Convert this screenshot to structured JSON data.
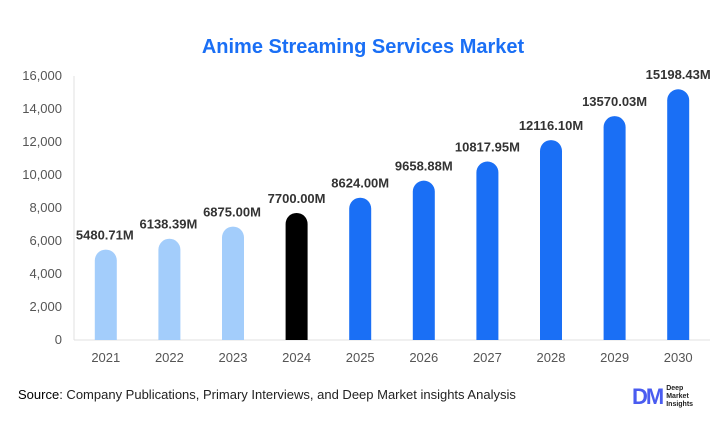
{
  "chart_data": {
    "type": "bar",
    "title": "Anime Streaming Services Market",
    "categories": [
      "2021",
      "2022",
      "2023",
      "2024",
      "2025",
      "2026",
      "2027",
      "2028",
      "2029",
      "2030"
    ],
    "values": [
      5480.71,
      6138.39,
      6875.0,
      7700.0,
      8624.0,
      9658.88,
      10817.95,
      12116.1,
      13570.03,
      15198.43
    ],
    "data_labels": [
      "5480.71M",
      "6138.39M",
      "6875.00M",
      "7700.00M",
      "8624.00M",
      "9658.88M",
      "10817.95M",
      "12116.10M",
      "13570.03M",
      "15198.43M"
    ],
    "bar_colors": [
      "#a3cdfb",
      "#a3cdfb",
      "#a3cdfb",
      "#000000",
      "#1a6ff5",
      "#1a6ff5",
      "#1a6ff5",
      "#1a6ff5",
      "#1a6ff5",
      "#1a6ff5"
    ],
    "ylim": [
      0,
      16000
    ],
    "yticks": [
      "0",
      "2,000",
      "4,000",
      "6,000",
      "8,000",
      "10,000",
      "12,000",
      "14,000",
      "16,000"
    ],
    "xlabel": "",
    "ylabel": "",
    "grid": false
  },
  "source": {
    "label": "Source",
    "text": ": Company Publications, Primary Interviews, and Deep Market insights Analysis"
  },
  "logo": {
    "mark": "DM",
    "lines": [
      "Deep",
      "Market",
      "Insights"
    ]
  }
}
